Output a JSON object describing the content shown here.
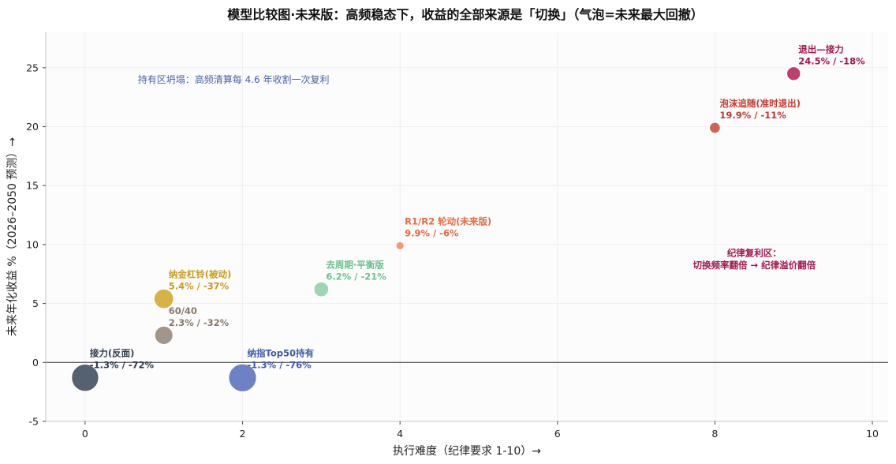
{
  "chart_data": {
    "type": "scatter",
    "title": "模型比较图·未来版：高频稳态下，收益的全部来源是「切换」（气泡=未来最大回撤）",
    "xlabel": "执行难度（纪律要求 1-10）→",
    "ylabel": "未来年化收益 %（2026–2050 预测）→",
    "xlim": [
      -0.5,
      10.2
    ],
    "ylim": [
      -5,
      28
    ],
    "xticks": [
      "0",
      "2",
      "4",
      "6",
      "8",
      "10"
    ],
    "yticks": [
      "-5",
      "0",
      "5",
      "10",
      "15",
      "20",
      "25"
    ],
    "grid": true,
    "points": [
      {
        "name": "退出—接力",
        "x": 9,
        "y": 24.5,
        "drawdown": 18,
        "label_line1": "退出—接力",
        "label_line2": "24.5% / -18%",
        "color": "#b5245a",
        "label_color": "#a3164e"
      },
      {
        "name": "泡沫追随(准时退出)",
        "x": 8,
        "y": 19.9,
        "drawdown": 11,
        "label_line1": "泡沫追随(准时退出)",
        "label_line2": "19.9% / -11%",
        "color": "#cc4d3e",
        "label_color": "#c23a2c"
      },
      {
        "name": "R1/R2 轮动(未来版)",
        "x": 4,
        "y": 9.9,
        "drawdown": 6,
        "label_line1": "R1/R2 轮动(未来版)",
        "label_line2": "9.9% / -6%",
        "color": "#f4896a",
        "label_color": "#e8683f"
      },
      {
        "name": "去周期·平衡版",
        "x": 3,
        "y": 6.2,
        "drawdown": 21,
        "label_line1": "去周期·平衡版",
        "label_line2": "6.2% / -21%",
        "color": "#8fd0a6",
        "label_color": "#6cc08e"
      },
      {
        "name": "纳金杠铃(被动)",
        "x": 1,
        "y": 5.4,
        "drawdown": 37,
        "label_line1": "纳金杠铃(被动)",
        "label_line2": "5.4% / -37%",
        "color": "#d4a72c",
        "label_color": "#c99b1a"
      },
      {
        "name": "60/40",
        "x": 1,
        "y": 2.3,
        "drawdown": 32,
        "label_line1": "60/40",
        "label_line2": "2.3% / -32%",
        "color": "#95877a",
        "label_color": "#877868"
      },
      {
        "name": "纳指Top50持有",
        "x": 2,
        "y": -1.3,
        "drawdown": 76,
        "label_line1": "纳指Top50持有",
        "label_line2": "-1.3% / -76%",
        "color": "#5b70bd",
        "label_color": "#3e5aa8"
      },
      {
        "name": "接力(反面)",
        "x": 0,
        "y": -1.3,
        "drawdown": 72,
        "label_line1": "接力(反面)",
        "label_line2": "-1.3% / -72%",
        "color": "#3d4a5c",
        "label_color": "#2e3a4b"
      }
    ],
    "annotations": [
      {
        "text": "持有区坍塌：高频清算每 4.6 年收割一次复利",
        "color": "#4a63a8"
      },
      {
        "line1": "纪律复利区：",
        "line2": "切换频率翻倍 → 纪律溢价翻倍",
        "color": "#a3164e"
      }
    ]
  }
}
